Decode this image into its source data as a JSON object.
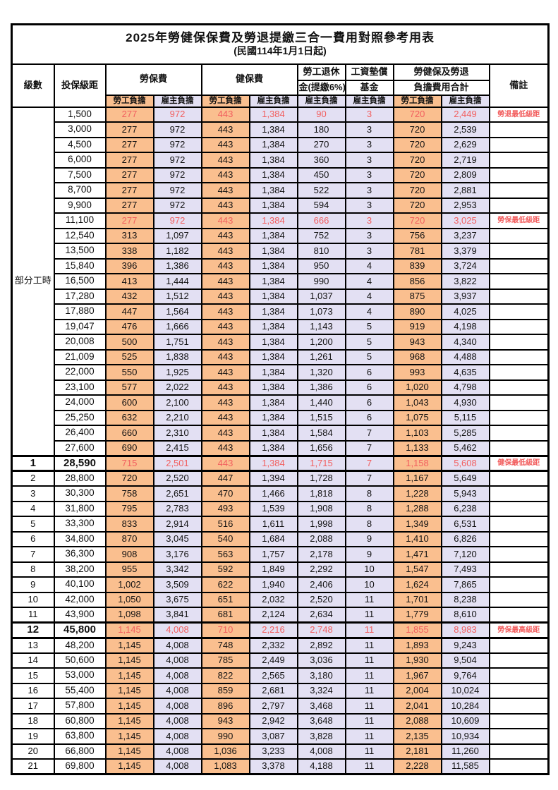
{
  "title": "2025年勞健保保費及勞退提繳三合一費用對照參考用表",
  "subtitle": "(民國114年1月1日起)",
  "columns": {
    "level": "級數",
    "bracket": "投保級距",
    "labor_insurance": "勞保費",
    "health_insurance": "健保費",
    "pension_line1": "勞工退休",
    "pension_line2": "金(提繳6%)",
    "wage_fund_line1": "工資墊償",
    "wage_fund_line2": "基金",
    "combined_line1": "勞健保及勞退",
    "combined_line2": "負擔費用合計",
    "remark": "備註",
    "employee_label": "勞工負擔",
    "employer_label": "雇主負擔"
  },
  "part_time": {
    "label": "部分工時",
    "span": 23
  },
  "colors": {
    "employee_bg": "#FABF8F",
    "employer_bg": "#E3E0F3",
    "highlight_red": "#F25F5F"
  },
  "rows": [
    {
      "level": "",
      "bracket": "1,500",
      "values": [
        "277",
        "972",
        "443",
        "1,384",
        "90",
        "3",
        "720",
        "2,449"
      ],
      "note": "勞退最低級距",
      "red": true,
      "bold": false
    },
    {
      "level": "",
      "bracket": "3,000",
      "values": [
        "277",
        "972",
        "443",
        "1,384",
        "180",
        "3",
        "720",
        "2,539"
      ],
      "note": "",
      "red": false,
      "bold": false
    },
    {
      "level": "",
      "bracket": "4,500",
      "values": [
        "277",
        "972",
        "443",
        "1,384",
        "270",
        "3",
        "720",
        "2,629"
      ],
      "note": "",
      "red": false,
      "bold": false
    },
    {
      "level": "",
      "bracket": "6,000",
      "values": [
        "277",
        "972",
        "443",
        "1,384",
        "360",
        "3",
        "720",
        "2,719"
      ],
      "note": "",
      "red": false,
      "bold": false
    },
    {
      "level": "",
      "bracket": "7,500",
      "values": [
        "277",
        "972",
        "443",
        "1,384",
        "450",
        "3",
        "720",
        "2,809"
      ],
      "note": "",
      "red": false,
      "bold": false
    },
    {
      "level": "",
      "bracket": "8,700",
      "values": [
        "277",
        "972",
        "443",
        "1,384",
        "522",
        "3",
        "720",
        "2,881"
      ],
      "note": "",
      "red": false,
      "bold": false
    },
    {
      "level": "",
      "bracket": "9,900",
      "values": [
        "277",
        "972",
        "443",
        "1,384",
        "594",
        "3",
        "720",
        "2,953"
      ],
      "note": "",
      "red": false,
      "bold": false
    },
    {
      "level": "",
      "bracket": "11,100",
      "values": [
        "277",
        "972",
        "443",
        "1,384",
        "666",
        "3",
        "720",
        "3,025"
      ],
      "note": "勞保最低級距",
      "red": true,
      "bold": false
    },
    {
      "level": "",
      "bracket": "12,540",
      "values": [
        "313",
        "1,097",
        "443",
        "1,384",
        "752",
        "3",
        "756",
        "3,237"
      ],
      "note": "",
      "red": false,
      "bold": false
    },
    {
      "level": "",
      "bracket": "13,500",
      "values": [
        "338",
        "1,182",
        "443",
        "1,384",
        "810",
        "3",
        "781",
        "3,379"
      ],
      "note": "",
      "red": false,
      "bold": false
    },
    {
      "level": "",
      "bracket": "15,840",
      "values": [
        "396",
        "1,386",
        "443",
        "1,384",
        "950",
        "4",
        "839",
        "3,724"
      ],
      "note": "",
      "red": false,
      "bold": false
    },
    {
      "level": "",
      "bracket": "16,500",
      "values": [
        "413",
        "1,444",
        "443",
        "1,384",
        "990",
        "4",
        "856",
        "3,822"
      ],
      "note": "",
      "red": false,
      "bold": false
    },
    {
      "level": "",
      "bracket": "17,280",
      "values": [
        "432",
        "1,512",
        "443",
        "1,384",
        "1,037",
        "4",
        "875",
        "3,937"
      ],
      "note": "",
      "red": false,
      "bold": false
    },
    {
      "level": "",
      "bracket": "17,880",
      "values": [
        "447",
        "1,564",
        "443",
        "1,384",
        "1,073",
        "4",
        "890",
        "4,025"
      ],
      "note": "",
      "red": false,
      "bold": false
    },
    {
      "level": "",
      "bracket": "19,047",
      "values": [
        "476",
        "1,666",
        "443",
        "1,384",
        "1,143",
        "5",
        "919",
        "4,198"
      ],
      "note": "",
      "red": false,
      "bold": false
    },
    {
      "level": "",
      "bracket": "20,008",
      "values": [
        "500",
        "1,751",
        "443",
        "1,384",
        "1,200",
        "5",
        "943",
        "4,340"
      ],
      "note": "",
      "red": false,
      "bold": false
    },
    {
      "level": "",
      "bracket": "21,009",
      "values": [
        "525",
        "1,838",
        "443",
        "1,384",
        "1,261",
        "5",
        "968",
        "4,488"
      ],
      "note": "",
      "red": false,
      "bold": false
    },
    {
      "level": "",
      "bracket": "22,000",
      "values": [
        "550",
        "1,925",
        "443",
        "1,384",
        "1,320",
        "6",
        "993",
        "4,635"
      ],
      "note": "",
      "red": false,
      "bold": false
    },
    {
      "level": "",
      "bracket": "23,100",
      "values": [
        "577",
        "2,022",
        "443",
        "1,384",
        "1,386",
        "6",
        "1,020",
        "4,798"
      ],
      "note": "",
      "red": false,
      "bold": false
    },
    {
      "level": "",
      "bracket": "24,000",
      "values": [
        "600",
        "2,100",
        "443",
        "1,384",
        "1,440",
        "6",
        "1,043",
        "4,930"
      ],
      "note": "",
      "red": false,
      "bold": false
    },
    {
      "level": "",
      "bracket": "25,250",
      "values": [
        "632",
        "2,210",
        "443",
        "1,384",
        "1,515",
        "6",
        "1,075",
        "5,115"
      ],
      "note": "",
      "red": false,
      "bold": false
    },
    {
      "level": "",
      "bracket": "26,400",
      "values": [
        "660",
        "2,310",
        "443",
        "1,384",
        "1,584",
        "7",
        "1,103",
        "5,285"
      ],
      "note": "",
      "red": false,
      "bold": false
    },
    {
      "level": "",
      "bracket": "27,600",
      "values": [
        "690",
        "2,415",
        "443",
        "1,384",
        "1,656",
        "7",
        "1,133",
        "5,462"
      ],
      "note": "",
      "red": false,
      "bold": false
    },
    {
      "level": "1",
      "bracket": "28,590",
      "values": [
        "715",
        "2,501",
        "443",
        "1,384",
        "1,715",
        "7",
        "1,158",
        "5,608"
      ],
      "note": "健保最低級距",
      "red": true,
      "bold": true
    },
    {
      "level": "2",
      "bracket": "28,800",
      "values": [
        "720",
        "2,520",
        "447",
        "1,394",
        "1,728",
        "7",
        "1,167",
        "5,649"
      ],
      "note": "",
      "red": false,
      "bold": false
    },
    {
      "level": "3",
      "bracket": "30,300",
      "values": [
        "758",
        "2,651",
        "470",
        "1,466",
        "1,818",
        "8",
        "1,228",
        "5,943"
      ],
      "note": "",
      "red": false,
      "bold": false
    },
    {
      "level": "4",
      "bracket": "31,800",
      "values": [
        "795",
        "2,783",
        "493",
        "1,539",
        "1,908",
        "8",
        "1,288",
        "6,238"
      ],
      "note": "",
      "red": false,
      "bold": false
    },
    {
      "level": "5",
      "bracket": "33,300",
      "values": [
        "833",
        "2,914",
        "516",
        "1,611",
        "1,998",
        "8",
        "1,349",
        "6,531"
      ],
      "note": "",
      "red": false,
      "bold": false
    },
    {
      "level": "6",
      "bracket": "34,800",
      "values": [
        "870",
        "3,045",
        "540",
        "1,684",
        "2,088",
        "9",
        "1,410",
        "6,826"
      ],
      "note": "",
      "red": false,
      "bold": false
    },
    {
      "level": "7",
      "bracket": "36,300",
      "values": [
        "908",
        "3,176",
        "563",
        "1,757",
        "2,178",
        "9",
        "1,471",
        "7,120"
      ],
      "note": "",
      "red": false,
      "bold": false
    },
    {
      "level": "8",
      "bracket": "38,200",
      "values": [
        "955",
        "3,342",
        "592",
        "1,849",
        "2,292",
        "10",
        "1,547",
        "7,493"
      ],
      "note": "",
      "red": false,
      "bold": false
    },
    {
      "level": "9",
      "bracket": "40,100",
      "values": [
        "1,002",
        "3,509",
        "622",
        "1,940",
        "2,406",
        "10",
        "1,624",
        "7,865"
      ],
      "note": "",
      "red": false,
      "bold": false
    },
    {
      "level": "10",
      "bracket": "42,000",
      "values": [
        "1,050",
        "3,675",
        "651",
        "2,032",
        "2,520",
        "11",
        "1,701",
        "8,238"
      ],
      "note": "",
      "red": false,
      "bold": false
    },
    {
      "level": "11",
      "bracket": "43,900",
      "values": [
        "1,098",
        "3,841",
        "681",
        "2,124",
        "2,634",
        "11",
        "1,779",
        "8,610"
      ],
      "note": "",
      "red": false,
      "bold": false
    },
    {
      "level": "12",
      "bracket": "45,800",
      "values": [
        "1,145",
        "4,008",
        "710",
        "2,216",
        "2,748",
        "11",
        "1,855",
        "8,983"
      ],
      "note": "勞保最高級距",
      "red": true,
      "bold": true
    },
    {
      "level": "13",
      "bracket": "48,200",
      "values": [
        "1,145",
        "4,008",
        "748",
        "2,332",
        "2,892",
        "11",
        "1,893",
        "9,243"
      ],
      "note": "",
      "red": false,
      "bold": false
    },
    {
      "level": "14",
      "bracket": "50,600",
      "values": [
        "1,145",
        "4,008",
        "785",
        "2,449",
        "3,036",
        "11",
        "1,930",
        "9,504"
      ],
      "note": "",
      "red": false,
      "bold": false
    },
    {
      "level": "15",
      "bracket": "53,000",
      "values": [
        "1,145",
        "4,008",
        "822",
        "2,565",
        "3,180",
        "11",
        "1,967",
        "9,764"
      ],
      "note": "",
      "red": false,
      "bold": false
    },
    {
      "level": "16",
      "bracket": "55,400",
      "values": [
        "1,145",
        "4,008",
        "859",
        "2,681",
        "3,324",
        "11",
        "2,004",
        "10,024"
      ],
      "note": "",
      "red": false,
      "bold": false
    },
    {
      "level": "17",
      "bracket": "57,800",
      "values": [
        "1,145",
        "4,008",
        "896",
        "2,797",
        "3,468",
        "11",
        "2,041",
        "10,284"
      ],
      "note": "",
      "red": false,
      "bold": false
    },
    {
      "level": "18",
      "bracket": "60,800",
      "values": [
        "1,145",
        "4,008",
        "943",
        "2,942",
        "3,648",
        "11",
        "2,088",
        "10,609"
      ],
      "note": "",
      "red": false,
      "bold": false
    },
    {
      "level": "19",
      "bracket": "63,800",
      "values": [
        "1,145",
        "4,008",
        "990",
        "3,087",
        "3,828",
        "11",
        "2,135",
        "10,934"
      ],
      "note": "",
      "red": false,
      "bold": false
    },
    {
      "level": "20",
      "bracket": "66,800",
      "values": [
        "1,145",
        "4,008",
        "1,036",
        "3,233",
        "4,008",
        "11",
        "2,181",
        "11,260"
      ],
      "note": "",
      "red": false,
      "bold": false
    },
    {
      "level": "21",
      "bracket": "69,800",
      "values": [
        "1,145",
        "4,008",
        "1,083",
        "3,378",
        "4,188",
        "11",
        "2,228",
        "11,585"
      ],
      "note": "",
      "red": false,
      "bold": false
    }
  ]
}
